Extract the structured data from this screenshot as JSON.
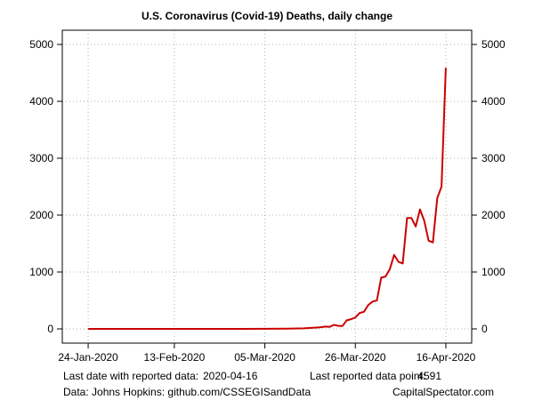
{
  "chart_data": {
    "type": "line",
    "title": "U.S. Coronavirus (Covid-19) Deaths, daily change",
    "xlabel": "",
    "ylabel": "",
    "x_ticks": [
      "24-Jan-2020",
      "13-Feb-2020",
      "05-Mar-2020",
      "26-Mar-2020",
      "16-Apr-2020"
    ],
    "y_ticks": [
      0,
      1000,
      2000,
      3000,
      4000,
      5000
    ],
    "ylim": [
      -250,
      5250
    ],
    "xlim": [
      "2020-01-18",
      "2020-04-22"
    ],
    "grid": true,
    "line_color": "#cc0000",
    "series": [
      {
        "x": [
          "2020-01-24",
          "2020-02-29",
          "2020-03-05",
          "2020-03-10",
          "2020-03-14",
          "2020-03-16",
          "2020-03-17",
          "2020-03-18",
          "2020-03-19",
          "2020-03-20",
          "2020-03-21",
          "2020-03-22",
          "2020-03-23",
          "2020-03-24",
          "2020-03-25",
          "2020-03-26",
          "2020-03-27",
          "2020-03-28",
          "2020-03-29",
          "2020-03-30",
          "2020-03-31",
          "2020-04-01",
          "2020-04-02",
          "2020-04-03",
          "2020-04-04",
          "2020-04-05",
          "2020-04-06",
          "2020-04-07",
          "2020-04-08",
          "2020-04-09",
          "2020-04-10",
          "2020-04-11",
          "2020-04-12",
          "2020-04-13",
          "2020-04-14",
          "2020-04-15",
          "2020-04-16"
        ],
        "values": [
          0,
          0,
          2,
          5,
          10,
          18,
          23,
          30,
          40,
          35,
          70,
          55,
          50,
          150,
          170,
          200,
          280,
          300,
          420,
          480,
          500,
          900,
          920,
          1050,
          1300,
          1180,
          1150,
          1950,
          1950,
          1800,
          2100,
          1900,
          1550,
          1520,
          2300,
          2500,
          4591
        ]
      }
    ]
  },
  "footer": {
    "last_date_label": "Last date with reported data:",
    "last_date_value": "2020-04-16",
    "last_point_label": "Last reported data point:",
    "last_point_value": "4591",
    "source": "Data: Johns Hopkins: github.com/CSSEGISandData",
    "credit": "CapitalSpectator.com"
  }
}
